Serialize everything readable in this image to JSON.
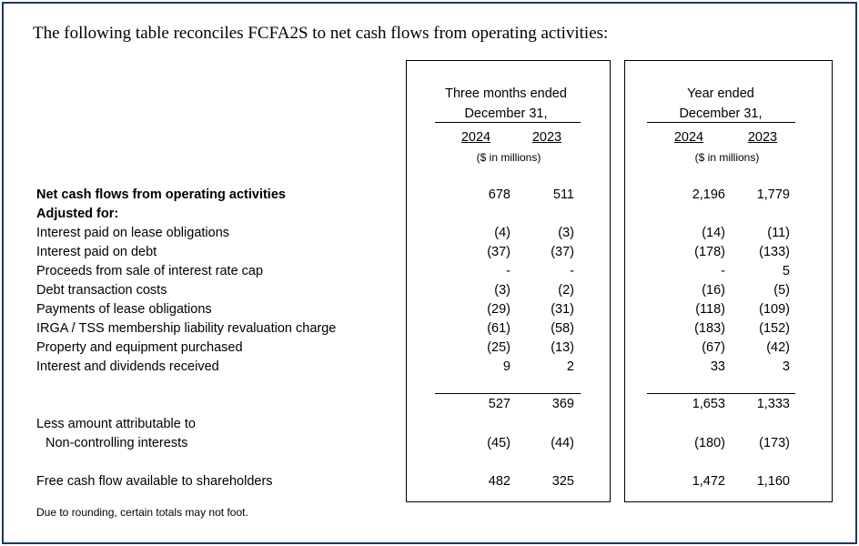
{
  "intro": "The following table reconciles FCFA2S to net cash flows from operating activities:",
  "headers": {
    "quarter": {
      "line1": "Three months ended",
      "line2": "December 31,",
      "years": [
        "2024",
        "2023"
      ],
      "unit": "($ in millions)"
    },
    "annual": {
      "line1": "Year ended",
      "line2": "December 31,",
      "years": [
        "2024",
        "2023"
      ],
      "unit": "($ in millions)"
    }
  },
  "rows": [
    {
      "label": "Net cash flows from operating activities",
      "bold": true,
      "values": [
        "678",
        "511",
        "2,196",
        "1,779"
      ]
    },
    {
      "label": "Adjusted for:",
      "bold": true,
      "values": [
        "",
        "",
        "",
        ""
      ]
    },
    {
      "label": "Interest paid on lease obligations",
      "values": [
        "(4)",
        "(3)",
        "(14)",
        "(11)"
      ]
    },
    {
      "label": "Interest paid on debt",
      "values": [
        "(37)",
        "(37)",
        "(178)",
        "(133)"
      ]
    },
    {
      "label": "Proceeds from sale of interest rate cap",
      "values": [
        "-",
        "-",
        "-",
        "5"
      ]
    },
    {
      "label": "Debt transaction costs",
      "values": [
        "(3)",
        "(2)",
        "(16)",
        "(5)"
      ]
    },
    {
      "label": "Payments of lease obligations",
      "values": [
        "(29)",
        "(31)",
        "(118)",
        "(109)"
      ]
    },
    {
      "label": "IRGA / TSS membership liability revaluation charge",
      "values": [
        "(61)",
        "(58)",
        "(183)",
        "(152)"
      ]
    },
    {
      "label": "Property and equipment purchased",
      "values": [
        "(25)",
        "(13)",
        "(67)",
        "(42)"
      ]
    },
    {
      "label": "Interest and dividends received",
      "values": [
        "9",
        "2",
        "33",
        "3"
      ]
    }
  ],
  "subtotal": {
    "values": [
      "527",
      "369",
      "1,653",
      "1,333"
    ]
  },
  "less": {
    "line1": "Less amount attributable to",
    "line2": "Non-controlling interests",
    "values": [
      "(45)",
      "(44)",
      "(180)",
      "(173)"
    ]
  },
  "fcf": {
    "label": "Free cash flow available to shareholders",
    "values": [
      "482",
      "325",
      "1,472",
      "1,160"
    ]
  },
  "footnote": "Due to rounding, certain totals may not foot."
}
